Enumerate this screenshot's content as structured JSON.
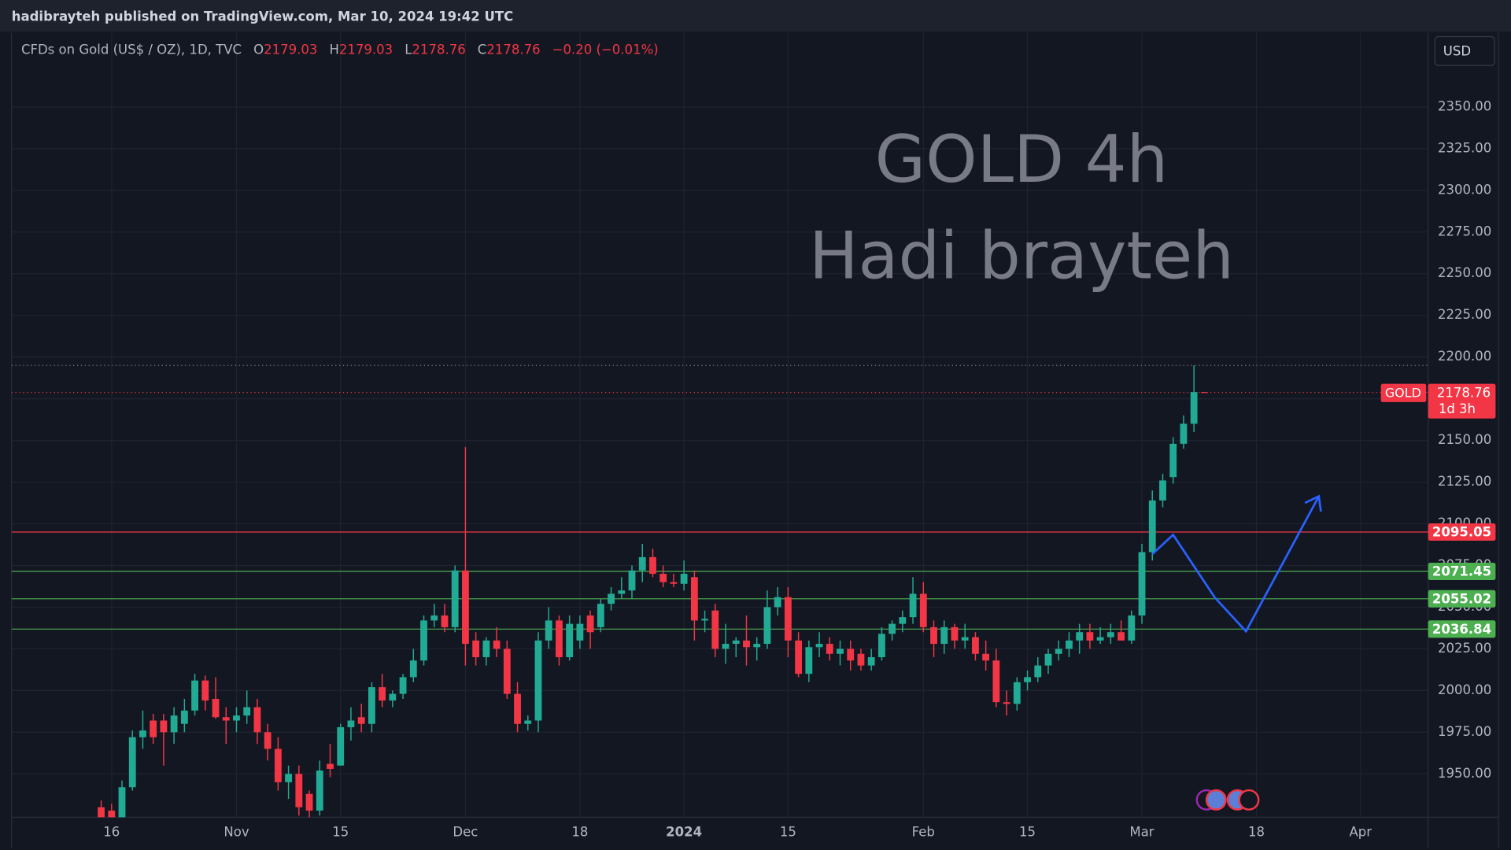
{
  "header": {
    "published": "hadibrayteh published on TradingView.com, Mar 10, 2024 19:42 UTC",
    "o": "O",
    "h": "H",
    "l": "L",
    "c": "C",
    "change": "−0.20 (−0.01%)",
    "currency": "USD"
  },
  "chart_data": {
    "type": "candlestick",
    "title": "CFDs on Gold (US$ / OZ), 1D, TVC",
    "watermark": [
      "GOLD 4h",
      "Hadi brayteh"
    ],
    "up_color": "#22ab94",
    "down_color": "#f23645",
    "candles": [
      [
        1930,
        1934,
        1918,
        1922
      ],
      [
        1928,
        1932,
        1918,
        1922
      ],
      [
        1922,
        1946,
        1918,
        1942
      ],
      [
        1942,
        1976,
        1940,
        1972
      ],
      [
        1972,
        1988,
        1965,
        1976
      ],
      [
        1982,
        1986,
        1968,
        1972
      ],
      [
        1982,
        1986,
        1955,
        1975
      ],
      [
        1975,
        1990,
        1968,
        1985
      ],
      [
        1980,
        1995,
        1975,
        1988
      ],
      [
        1988,
        2010,
        1985,
        2006
      ],
      [
        2006,
        2009,
        1988,
        1994
      ],
      [
        1995,
        2008,
        1983,
        1984
      ],
      [
        1984,
        1990,
        1968,
        1982
      ],
      [
        1982,
        1990,
        1975,
        1985
      ],
      [
        1985,
        2000,
        1980,
        1990
      ],
      [
        1990,
        1995,
        1968,
        1975
      ],
      [
        1975,
        1980,
        1958,
        1965
      ],
      [
        1965,
        1972,
        1940,
        1945
      ],
      [
        1945,
        1955,
        1935,
        1950
      ],
      [
        1950,
        1955,
        1925,
        1930
      ],
      [
        1938,
        1940,
        1920,
        1928
      ],
      [
        1928,
        1958,
        1925,
        1952
      ],
      [
        1956,
        1968,
        1948,
        1953
      ],
      [
        1955,
        1980,
        1955,
        1978
      ],
      [
        1978,
        1990,
        1970,
        1982
      ],
      [
        1984,
        1992,
        1975,
        1980
      ],
      [
        1980,
        2005,
        1975,
        2002
      ],
      [
        2002,
        2010,
        1990,
        1994
      ],
      [
        1994,
        2000,
        1990,
        1998
      ],
      [
        1998,
        2010,
        1995,
        2008
      ],
      [
        2008,
        2025,
        2005,
        2018
      ],
      [
        2018,
        2045,
        2015,
        2042
      ],
      [
        2042,
        2052,
        2038,
        2045
      ],
      [
        2045,
        2052,
        2035,
        2038
      ],
      [
        2038,
        2075,
        2035,
        2072
      ],
      [
        2072,
        2146,
        2015,
        2028
      ],
      [
        2030,
        2035,
        2015,
        2020
      ],
      [
        2020,
        2032,
        2015,
        2030
      ],
      [
        2030,
        2038,
        2020,
        2025
      ],
      [
        2025,
        2030,
        1995,
        1998
      ],
      [
        1998,
        2005,
        1975,
        1980
      ],
      [
        1980,
        1985,
        1976,
        1982
      ],
      [
        1982,
        2035,
        1975,
        2030
      ],
      [
        2030,
        2050,
        2025,
        2042
      ],
      [
        2042,
        2045,
        2015,
        2020
      ],
      [
        2020,
        2045,
        2018,
        2040
      ],
      [
        2030,
        2045,
        2025,
        2040
      ],
      [
        2045,
        2048,
        2025,
        2035
      ],
      [
        2038,
        2055,
        2035,
        2052
      ],
      [
        2052,
        2062,
        2048,
        2058
      ],
      [
        2058,
        2068,
        2055,
        2060
      ],
      [
        2060,
        2075,
        2055,
        2072
      ],
      [
        2072,
        2088,
        2065,
        2080
      ],
      [
        2080,
        2085,
        2068,
        2070
      ],
      [
        2070,
        2075,
        2062,
        2065
      ],
      [
        2065,
        2070,
        2062,
        2064
      ],
      [
        2064,
        2078,
        2060,
        2070
      ],
      [
        2068,
        2072,
        2030,
        2042
      ],
      [
        2042,
        2048,
        2035,
        2043
      ],
      [
        2048,
        2052,
        2020,
        2025
      ],
      [
        2025,
        2040,
        2016,
        2028
      ],
      [
        2028,
        2032,
        2020,
        2030
      ],
      [
        2030,
        2045,
        2015,
        2026
      ],
      [
        2026,
        2032,
        2018,
        2028
      ],
      [
        2028,
        2060,
        2025,
        2050
      ],
      [
        2050,
        2062,
        2045,
        2056
      ],
      [
        2056,
        2062,
        2020,
        2030
      ],
      [
        2030,
        2035,
        2008,
        2010
      ],
      [
        2010,
        2030,
        2005,
        2026
      ],
      [
        2026,
        2035,
        2020,
        2028
      ],
      [
        2028,
        2032,
        2018,
        2022
      ],
      [
        2022,
        2030,
        2015,
        2025
      ],
      [
        2025,
        2030,
        2012,
        2018
      ],
      [
        2022,
        2025,
        2012,
        2015
      ],
      [
        2015,
        2025,
        2012,
        2020
      ],
      [
        2020,
        2038,
        2018,
        2034
      ],
      [
        2034,
        2042,
        2030,
        2040
      ],
      [
        2040,
        2048,
        2035,
        2044
      ],
      [
        2044,
        2068,
        2040,
        2058
      ],
      [
        2058,
        2065,
        2035,
        2038
      ],
      [
        2038,
        2042,
        2020,
        2028
      ],
      [
        2028,
        2042,
        2022,
        2038
      ],
      [
        2038,
        2040,
        2025,
        2030
      ],
      [
        2030,
        2040,
        2025,
        2032
      ],
      [
        2032,
        2035,
        2018,
        2022
      ],
      [
        2022,
        2030,
        2012,
        2018
      ],
      [
        2018,
        2025,
        1990,
        1993
      ],
      [
        1993,
        2000,
        1985,
        1992
      ],
      [
        1992,
        2008,
        1988,
        2005
      ],
      [
        2005,
        2012,
        2000,
        2008
      ],
      [
        2008,
        2020,
        2005,
        2015
      ],
      [
        2015,
        2025,
        2010,
        2022
      ],
      [
        2022,
        2030,
        2018,
        2025
      ],
      [
        2025,
        2035,
        2020,
        2030
      ],
      [
        2030,
        2040,
        2022,
        2035
      ],
      [
        2035,
        2040,
        2025,
        2030
      ],
      [
        2030,
        2038,
        2028,
        2032
      ],
      [
        2032,
        2040,
        2028,
        2035
      ],
      [
        2035,
        2042,
        2030,
        2030
      ],
      [
        2030,
        2048,
        2028,
        2045
      ],
      [
        2045,
        2088,
        2040,
        2083
      ],
      [
        2083,
        2120,
        2078,
        2114
      ],
      [
        2114,
        2130,
        2110,
        2126
      ],
      [
        2128,
        2152,
        2124,
        2148
      ],
      [
        2148,
        2165,
        2145,
        2160
      ],
      [
        2160,
        2195,
        2155,
        2179
      ],
      [
        2179.03,
        2179.03,
        2178.76,
        2178.76
      ]
    ],
    "xlim": [
      -8.61,
      127.5
    ],
    "ylim": [
      1924,
      2394.5
    ],
    "xticks": [
      {
        "value": 1,
        "label": "16"
      },
      {
        "value": 13,
        "label": "Nov"
      },
      {
        "value": 23,
        "label": "15"
      },
      {
        "value": 35,
        "label": "Dec"
      },
      {
        "value": 46,
        "label": "18"
      },
      {
        "value": 56,
        "label": "2024"
      },
      {
        "value": 66,
        "label": "15"
      },
      {
        "value": 79,
        "label": "Feb"
      },
      {
        "value": 89,
        "label": "15"
      },
      {
        "value": 100,
        "label": "Mar"
      },
      {
        "value": 111,
        "label": "18"
      },
      {
        "value": 121,
        "label": "Apr"
      }
    ],
    "yticks": [
      {
        "value": 1950,
        "label": "1950.00"
      },
      {
        "value": 1975,
        "label": "1975.00"
      },
      {
        "value": 2000,
        "label": "2000.00"
      },
      {
        "value": 2025,
        "label": "2025.00"
      },
      {
        "value": 2050,
        "label": "2050.00"
      },
      {
        "value": 2075,
        "label": "2075.00"
      },
      {
        "value": 2100,
        "label": "2100.00"
      },
      {
        "value": 2125,
        "label": "2125.00"
      },
      {
        "value": 2150,
        "label": "2150.00"
      },
      {
        "value": 2175,
        "label": "2175.00"
      },
      {
        "value": 2200,
        "label": "2200.00"
      },
      {
        "value": 2225,
        "label": "2225.00"
      },
      {
        "value": 2250,
        "label": "2250.00"
      },
      {
        "value": 2275,
        "label": "2275.00"
      },
      {
        "value": 2300,
        "label": "2300.00"
      },
      {
        "value": 2325,
        "label": "2325.00"
      },
      {
        "value": 2350,
        "label": "2350.00"
      }
    ],
    "grid": true,
    "levels": [
      {
        "value": 2095.05,
        "color": "#f23645"
      },
      {
        "value": 2071.45,
        "color": "#4caf50"
      },
      {
        "value": 2055.02,
        "color": "#4caf50"
      },
      {
        "value": 2036.84,
        "color": "#4caf50"
      }
    ],
    "last_price": {
      "symbol": "GOLD",
      "countdown": "1d 3h",
      "color": "#f23645"
    },
    "projection": {
      "color": "#2962ff",
      "points": [
        [
          101,
          2081.8
        ],
        [
          103,
          2093.4
        ],
        [
          107,
          2055.8
        ],
        [
          110,
          2035.5
        ],
        [
          117,
          2116.5
        ]
      ]
    }
  }
}
